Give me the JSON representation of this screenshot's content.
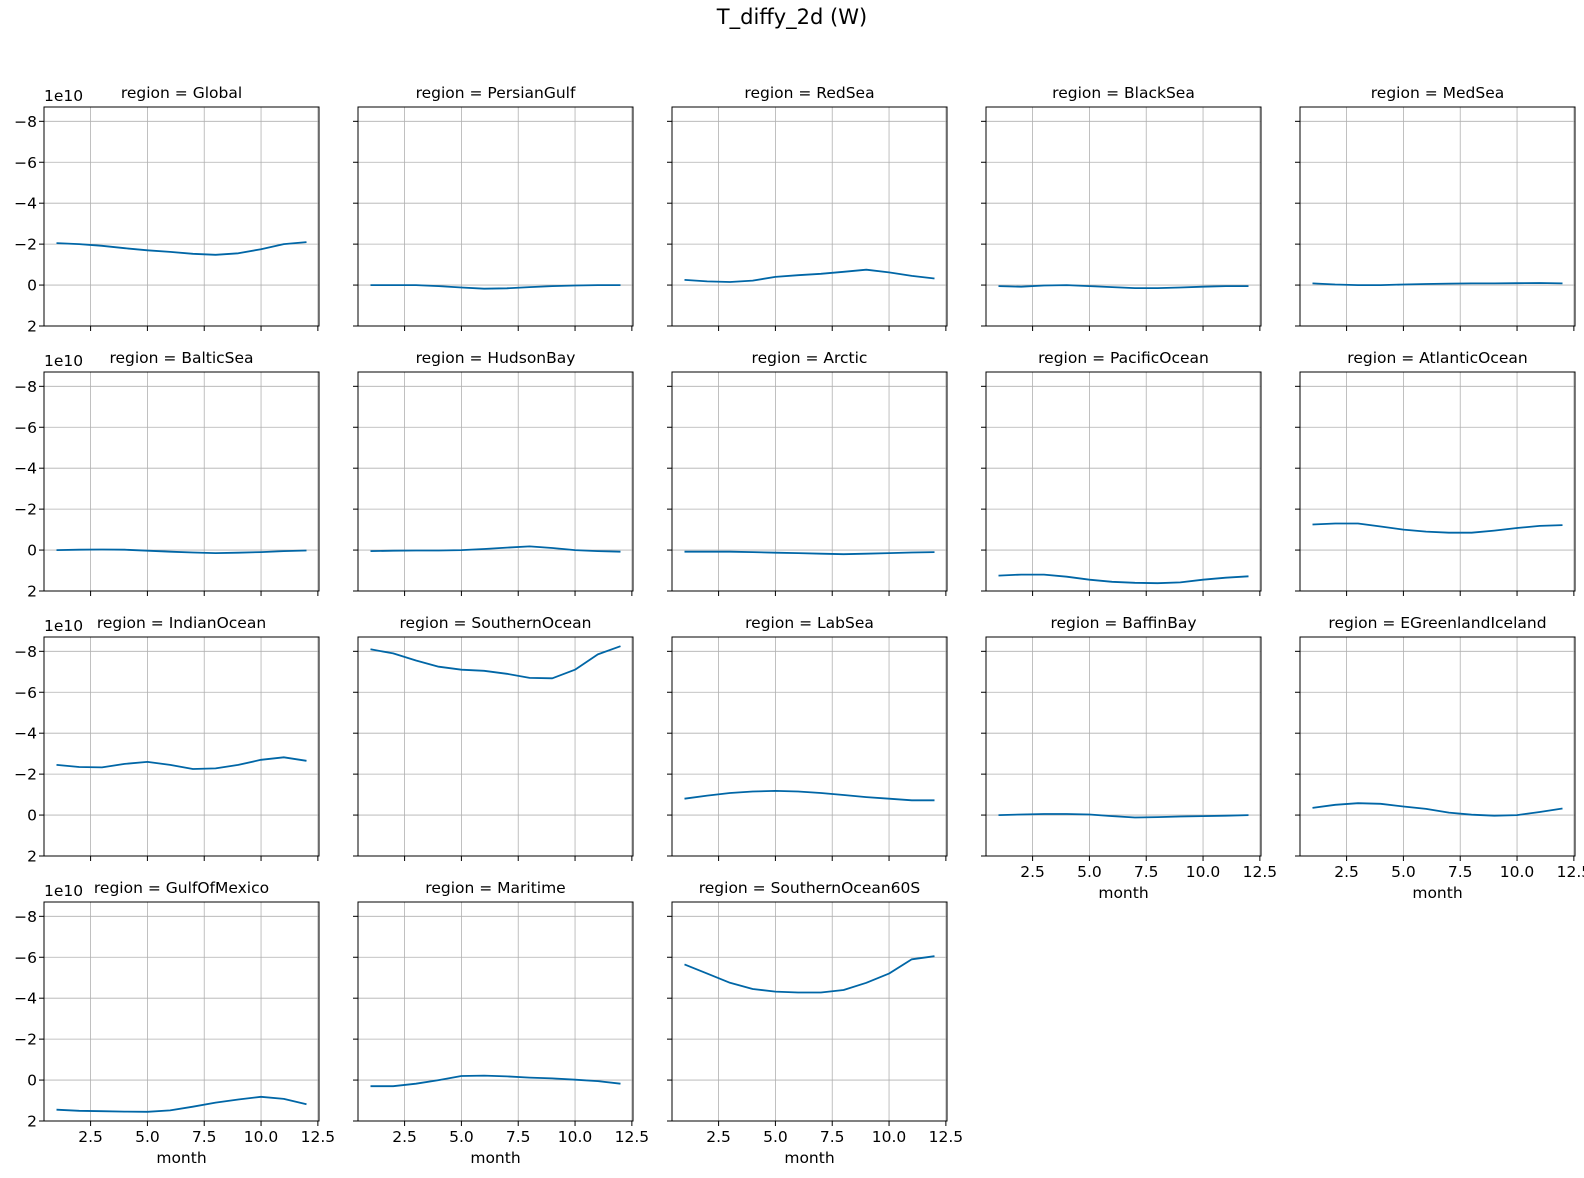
{
  "figure": {
    "title": "T_diffy_2d (W)"
  },
  "chart_data": {
    "type": "line",
    "title": "T_diffy_2d (W)",
    "xlabel": "month",
    "ylabel": "",
    "x": [
      1,
      2,
      3,
      4,
      5,
      6,
      7,
      8,
      9,
      10,
      11,
      12
    ],
    "xlim": [
      0.45,
      12.55
    ],
    "xticks": [
      2.5,
      5.0,
      7.5,
      10.0,
      12.5
    ],
    "xtick_labels": [
      "2.5",
      "5.0",
      "7.5",
      "10.0",
      "12.5"
    ],
    "ylim": [
      2,
      -8.7
    ],
    "y_inverted": true,
    "yticks": [
      -8,
      -6,
      -4,
      -2,
      0,
      2
    ],
    "ytick_labels": [
      "−8",
      "−6",
      "−4",
      "−2",
      "0",
      "2"
    ],
    "y_offset_label": "1e10",
    "grid": true,
    "line_color": "#0066a6",
    "panels": [
      {
        "title": "region = Global",
        "values": [
          -2.05,
          -2.0,
          -1.92,
          -1.8,
          -1.7,
          -1.62,
          -1.53,
          -1.48,
          -1.55,
          -1.75,
          -2.0,
          -2.1
        ]
      },
      {
        "title": "region = PersianGulf",
        "values": [
          0.0,
          0.0,
          0.0,
          0.05,
          0.12,
          0.18,
          0.16,
          0.1,
          0.05,
          0.02,
          0.0,
          0.0
        ]
      },
      {
        "title": "region = RedSea",
        "values": [
          -0.25,
          -0.18,
          -0.15,
          -0.22,
          -0.4,
          -0.48,
          -0.55,
          -0.65,
          -0.75,
          -0.62,
          -0.45,
          -0.32
        ]
      },
      {
        "title": "region = BlackSea",
        "values": [
          0.05,
          0.08,
          0.02,
          0.0,
          0.05,
          0.1,
          0.15,
          0.15,
          0.12,
          0.08,
          0.05,
          0.05
        ]
      },
      {
        "title": "region = MedSea",
        "values": [
          -0.08,
          -0.03,
          0.0,
          0.0,
          -0.03,
          -0.05,
          -0.07,
          -0.08,
          -0.08,
          -0.09,
          -0.1,
          -0.08
        ]
      },
      {
        "title": "region = BalticSea",
        "values": [
          0.0,
          -0.02,
          -0.03,
          -0.02,
          0.03,
          0.08,
          0.12,
          0.15,
          0.13,
          0.1,
          0.05,
          0.02
        ]
      },
      {
        "title": "region = HudsonBay",
        "values": [
          0.05,
          0.03,
          0.02,
          0.02,
          0.0,
          -0.05,
          -0.12,
          -0.18,
          -0.1,
          0.0,
          0.05,
          0.08
        ]
      },
      {
        "title": "region = Arctic",
        "values": [
          0.08,
          0.08,
          0.08,
          0.1,
          0.13,
          0.15,
          0.18,
          0.2,
          0.18,
          0.15,
          0.12,
          0.1
        ]
      },
      {
        "title": "region = PacificOcean",
        "values": [
          1.25,
          1.2,
          1.2,
          1.3,
          1.45,
          1.55,
          1.6,
          1.62,
          1.58,
          1.45,
          1.35,
          1.28
        ]
      },
      {
        "title": "region = AtlanticOcean",
        "values": [
          -1.25,
          -1.3,
          -1.3,
          -1.15,
          -1.0,
          -0.9,
          -0.85,
          -0.85,
          -0.95,
          -1.08,
          -1.18,
          -1.22
        ]
      },
      {
        "title": "region = IndianOcean",
        "values": [
          -2.45,
          -2.35,
          -2.33,
          -2.5,
          -2.6,
          -2.45,
          -2.25,
          -2.28,
          -2.45,
          -2.7,
          -2.82,
          -2.65
        ]
      },
      {
        "title": "region = SouthernOcean",
        "values": [
          -8.1,
          -7.9,
          -7.55,
          -7.25,
          -7.1,
          -7.05,
          -6.9,
          -6.7,
          -6.68,
          -7.1,
          -7.85,
          -8.25
        ]
      },
      {
        "title": "region = LabSea",
        "values": [
          -0.8,
          -0.95,
          -1.08,
          -1.15,
          -1.18,
          -1.15,
          -1.08,
          -0.98,
          -0.88,
          -0.8,
          -0.72,
          -0.72
        ]
      },
      {
        "title": "region = BaffinBay",
        "values": [
          0.0,
          -0.03,
          -0.05,
          -0.05,
          -0.03,
          0.05,
          0.12,
          0.1,
          0.07,
          0.05,
          0.03,
          0.0
        ]
      },
      {
        "title": "region = EGreenlandIceland",
        "values": [
          -0.35,
          -0.5,
          -0.58,
          -0.55,
          -0.42,
          -0.3,
          -0.12,
          -0.02,
          0.03,
          0.0,
          -0.15,
          -0.32
        ]
      },
      {
        "title": "region = GulfOfMexico",
        "values": [
          1.45,
          1.5,
          1.52,
          1.54,
          1.55,
          1.48,
          1.3,
          1.1,
          0.95,
          0.82,
          0.92,
          1.18
        ]
      },
      {
        "title": "region = Maritime",
        "values": [
          0.3,
          0.3,
          0.18,
          0.0,
          -0.2,
          -0.22,
          -0.18,
          -0.12,
          -0.08,
          -0.02,
          0.05,
          0.18
        ]
      },
      {
        "title": "region = SouthernOcean60S",
        "values": [
          -5.65,
          -5.2,
          -4.75,
          -4.45,
          -4.32,
          -4.28,
          -4.28,
          -4.4,
          -4.75,
          -5.2,
          -5.9,
          -6.05
        ]
      }
    ]
  }
}
